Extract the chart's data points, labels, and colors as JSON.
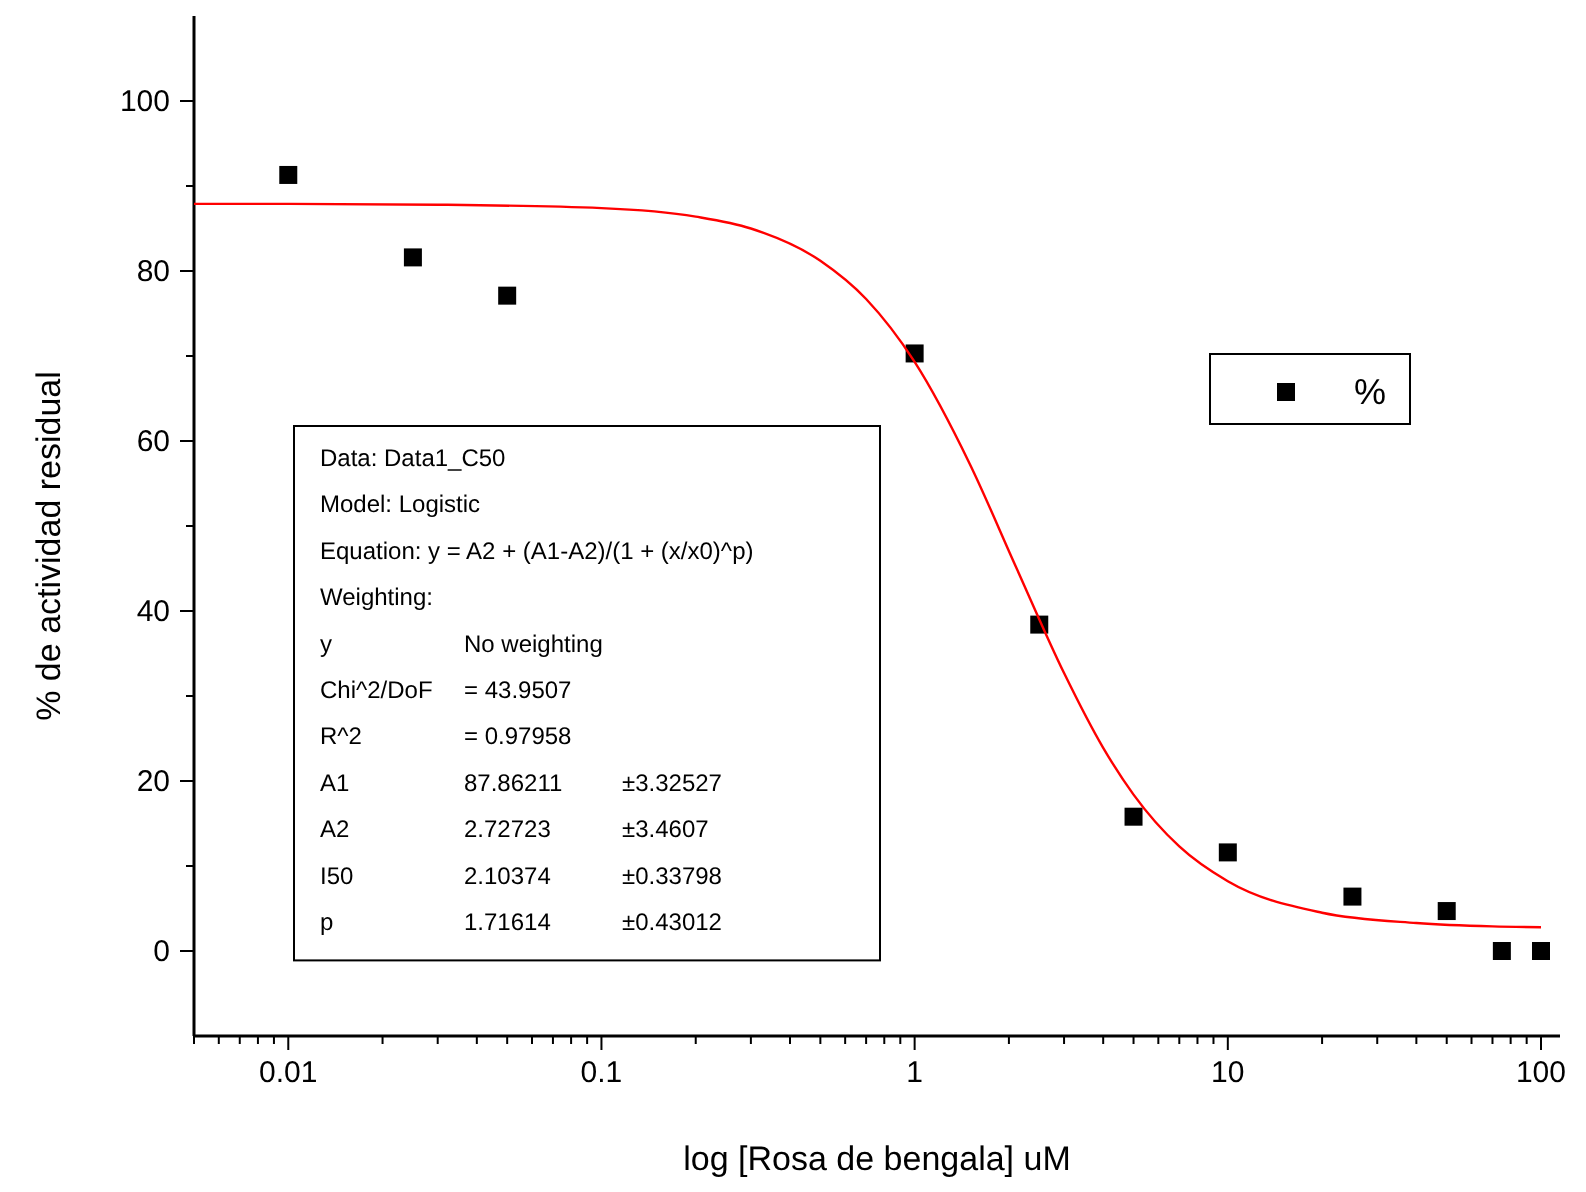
{
  "chart_data": {
    "type": "scatter",
    "xlabel": "log [Rosa de bengala] uM",
    "ylabel": "% de actividad residual",
    "log": "x",
    "xlim": [
      0.005,
      115
    ],
    "ylim": [
      -10,
      110
    ],
    "xticks": [
      {
        "value": 0.005,
        "label": null
      },
      {
        "value": 0.006,
        "label": null
      },
      {
        "value": 0.007,
        "label": null
      },
      {
        "value": 0.008,
        "label": null
      },
      {
        "value": 0.009,
        "label": null
      },
      {
        "value": 0.01,
        "label": "0.01"
      },
      {
        "value": 0.02,
        "label": null
      },
      {
        "value": 0.03,
        "label": null
      },
      {
        "value": 0.04,
        "label": null
      },
      {
        "value": 0.05,
        "label": null
      },
      {
        "value": 0.06,
        "label": null
      },
      {
        "value": 0.07,
        "label": null
      },
      {
        "value": 0.08,
        "label": null
      },
      {
        "value": 0.09,
        "label": null
      },
      {
        "value": 0.1,
        "label": "0.1"
      },
      {
        "value": 0.2,
        "label": null
      },
      {
        "value": 0.3,
        "label": null
      },
      {
        "value": 0.4,
        "label": null
      },
      {
        "value": 0.5,
        "label": null
      },
      {
        "value": 0.6,
        "label": null
      },
      {
        "value": 0.7,
        "label": null
      },
      {
        "value": 0.8,
        "label": null
      },
      {
        "value": 0.9,
        "label": null
      },
      1,
      {
        "value": 2,
        "label": null
      },
      {
        "value": 3,
        "label": null
      },
      {
        "value": 4,
        "label": null
      },
      {
        "value": 5,
        "label": null
      },
      {
        "value": 6,
        "label": null
      },
      {
        "value": 7,
        "label": null
      },
      {
        "value": 8,
        "label": null
      },
      {
        "value": 9,
        "label": null
      },
      10,
      {
        "value": 20,
        "label": null
      },
      {
        "value": 30,
        "label": null
      },
      {
        "value": 40,
        "label": null
      },
      {
        "value": 50,
        "label": null
      },
      {
        "value": 60,
        "label": null
      },
      {
        "value": 70,
        "label": null
      },
      {
        "value": 80,
        "label": null
      },
      {
        "value": 90,
        "label": null
      },
      100
    ],
    "yticks": [
      0,
      {
        "value": 10,
        "label": null
      },
      20,
      {
        "value": 30,
        "label": null
      },
      40,
      {
        "value": 50,
        "label": null
      },
      60,
      {
        "value": 70,
        "label": null
      },
      80,
      {
        "value": 90,
        "label": null
      },
      100
    ],
    "grid": false,
    "legend": "right",
    "marker": "square",
    "series": [
      {
        "name": "%",
        "color": "#000000",
        "x": [
          0.01,
          0.025,
          0.05,
          1,
          2.5,
          5,
          10,
          25,
          50,
          75,
          100
        ],
        "values": [
          91.3,
          81.6,
          77.1,
          70.3,
          38.4,
          15.8,
          11.6,
          6.4,
          4.7,
          0,
          0
        ]
      },
      {
        "type": "line",
        "color": "#ff0000",
        "marker": "none",
        "x": [
          0.005,
          0.01,
          0.03,
          0.1,
          0.2,
          0.3,
          0.5,
          0.7,
          1,
          1.5,
          2.1,
          3,
          4,
          5,
          7,
          10,
          20,
          40,
          70,
          100
        ],
        "values": [
          87.9,
          87.9,
          87.8,
          87.4,
          86.4,
          85,
          81.2,
          76.7,
          69.3,
          57.3,
          45.3,
          32.7,
          23.9,
          18.4,
          12.3,
          8.2,
          4.5,
          3.3,
          2.9,
          2.8
        ]
      }
    ],
    "annotations": [
      "Data: Data1_C50",
      "Model: Logistic",
      "Equation: y = A2 + (A1-A2)/(1 + (x/x0)^p)",
      "Weighting:",
      "y    No weighting",
      "Chi^2/DoF    = 43.9507",
      "R^2    = 0.97958",
      "A1    87.86211    ±3.32527",
      "A2    2.72723    ±3.4607",
      "I50    2.10374    ±0.33798",
      "p    1.71614    ±0.43012"
    ]
  }
}
